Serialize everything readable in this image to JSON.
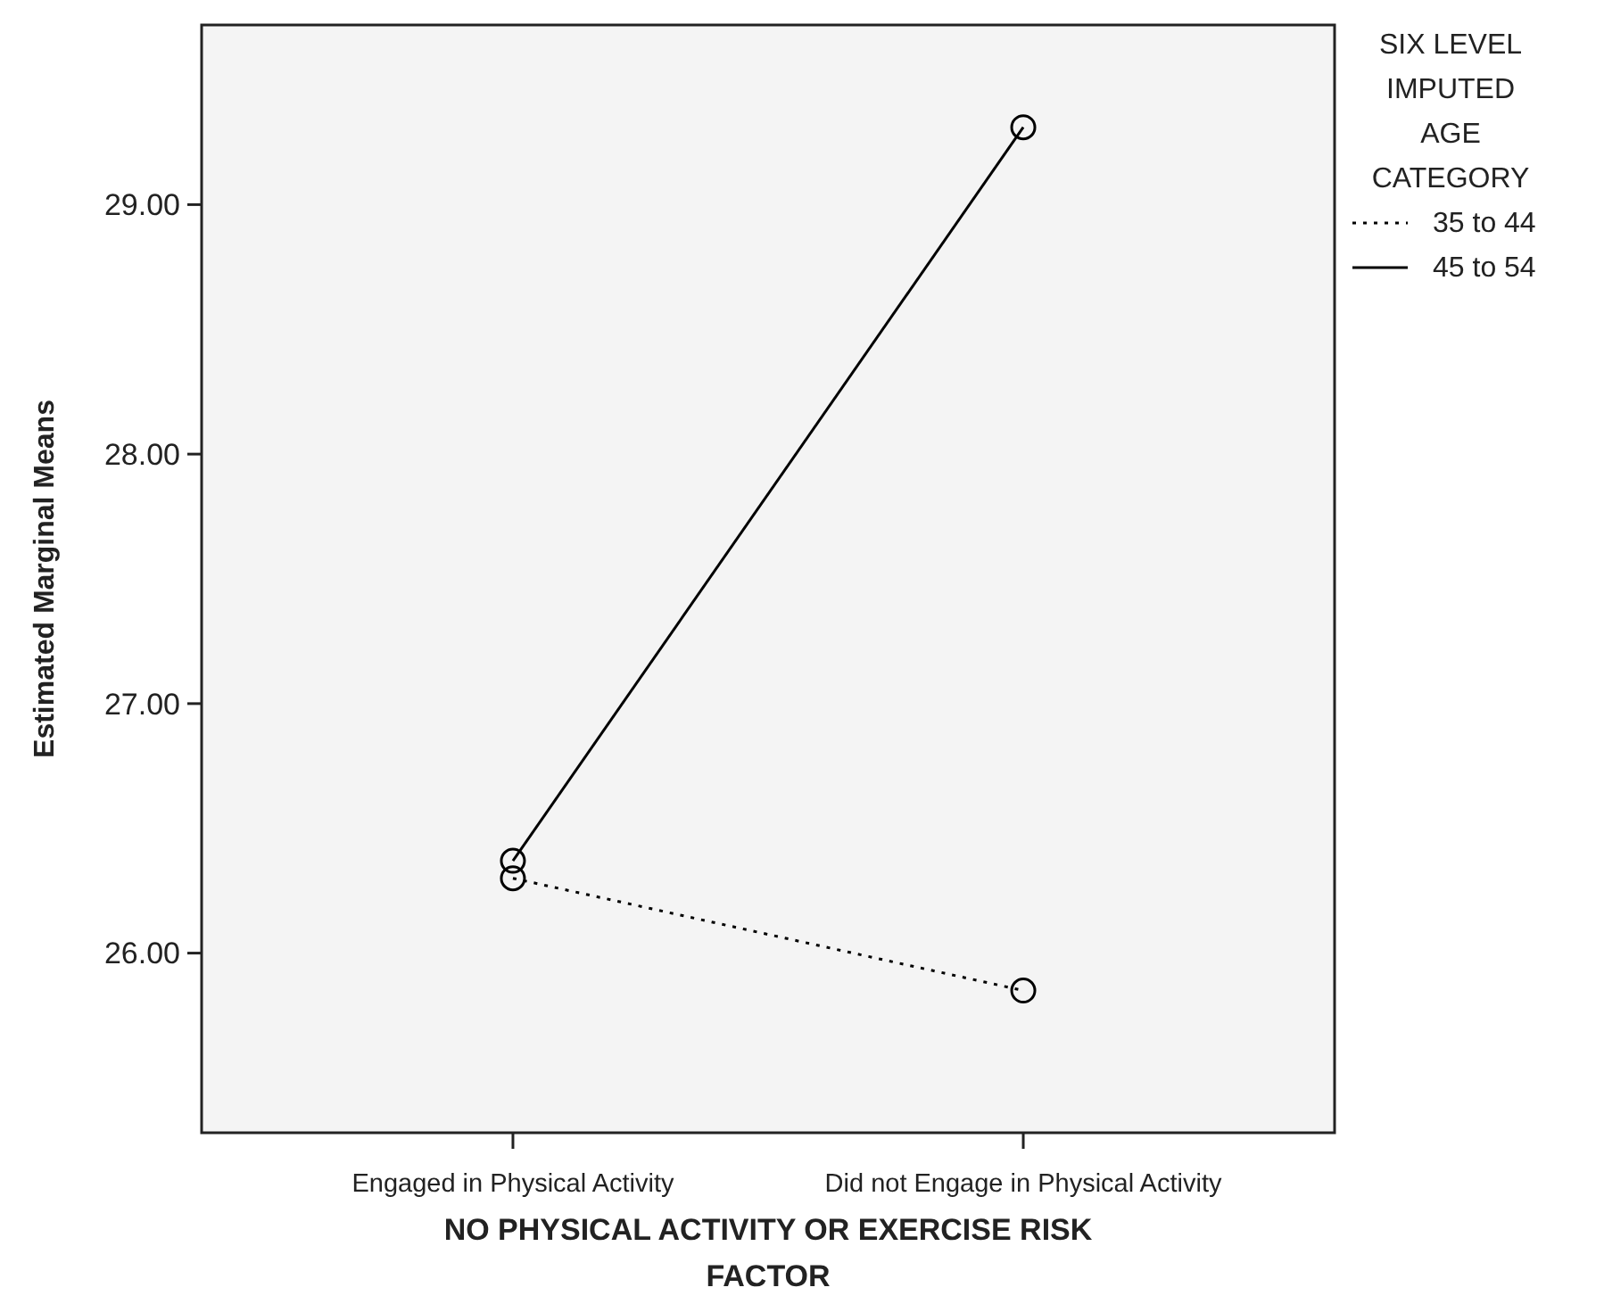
{
  "chart_data": {
    "type": "line",
    "xlabel": "NO PHYSICAL ACTIVITY OR EXERCISE RISK FACTOR",
    "ylabel": "Estimated Marginal Means",
    "legend_title": "SIX LEVEL IMPUTED AGE CATEGORY",
    "categories": [
      "Engaged in Physical Activity",
      "Did not Engage in Physical Activity"
    ],
    "series": [
      {
        "name": "35 to 44",
        "color": "#000000",
        "values": [
          26.3,
          25.85
        ],
        "line_style": "dotted"
      },
      {
        "name": "45 to 54",
        "color": "#000000",
        "values": [
          26.37,
          29.31
        ],
        "line_style": "solid"
      }
    ],
    "ylim": [
      25.28,
      29.72
    ],
    "yticks": [
      {
        "value": 26,
        "label": "26.00"
      },
      {
        "value": 27,
        "label": "27.00"
      },
      {
        "value": 28,
        "label": "28.00"
      },
      {
        "value": 29,
        "label": "29.00"
      }
    ],
    "marker": "circle",
    "legend": "top right",
    "grid": false
  }
}
